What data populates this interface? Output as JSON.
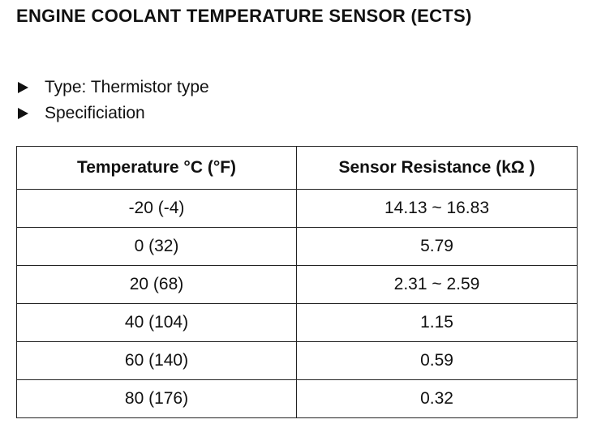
{
  "header": {
    "title": "ENGINE COOLANT TEMPERATURE SENSOR (ECTS)"
  },
  "bullets": [
    "Type: Thermistor type",
    "Specificiation"
  ],
  "table": {
    "columns": [
      "Temperature °C (°F)",
      "Sensor Resistance (kΩ )"
    ],
    "rows": [
      [
        "-20 (-4)",
        "14.13 ~ 16.83"
      ],
      [
        "0 (32)",
        "5.79"
      ],
      [
        "20 (68)",
        "2.31 ~ 2.59"
      ],
      [
        "40 (104)",
        "1.15"
      ],
      [
        "60 (140)",
        "0.59"
      ],
      [
        "80 (176)",
        "0.32"
      ]
    ]
  }
}
